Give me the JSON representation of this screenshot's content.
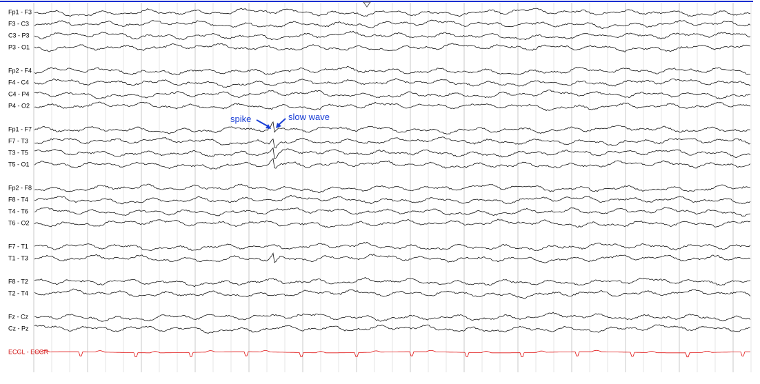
{
  "channel_groups": [
    [
      "Fp1 - F3",
      "F3 - C3",
      "C3 - P3",
      "P3 - O1"
    ],
    [
      "Fp2 - F4",
      "F4 - C4",
      "C4 - P4",
      "P4 - O2"
    ],
    [
      "Fp1 - F7",
      "F7 - T3",
      "T3 - T5",
      "T5 - O1"
    ],
    [
      "Fp2 - F8",
      "F8 - T4",
      "T4 - T6",
      "T6 - O2"
    ],
    [
      "F7 - T1",
      "T1 - T3"
    ],
    [
      "F8 - T2",
      "T2 - T4"
    ],
    [
      "Fz - Cz",
      "Cz - Pz"
    ],
    [
      "ECGL - ECGR"
    ]
  ],
  "annotations": {
    "spike": "spike",
    "slow_wave": "slow wave"
  }
}
